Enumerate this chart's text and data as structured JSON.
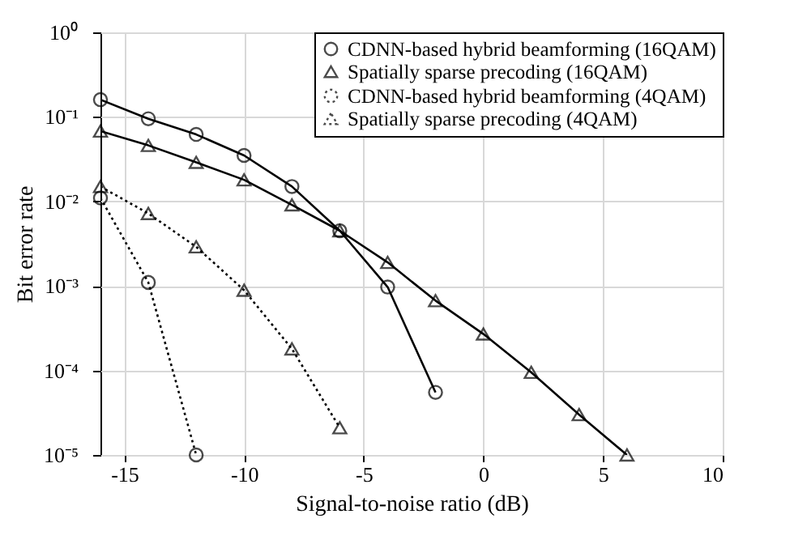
{
  "chart_data": {
    "type": "line",
    "xlabel": "Signal-to-noise ratio (dB)",
    "ylabel": "Bit error rate",
    "log": "y",
    "grid": true,
    "legend": "top right",
    "xlim": [
      -16,
      10
    ],
    "xticks": [
      -15,
      -10,
      -5,
      0,
      5,
      10
    ],
    "ylim": [
      1e-05,
      1
    ],
    "yticks": [
      {
        "value": 1e-05,
        "label": "10⁻⁵"
      },
      {
        "value": 0.0001,
        "label": "10⁻⁴"
      },
      {
        "value": 0.001,
        "label": "10⁻³"
      },
      {
        "value": 0.01,
        "label": "10⁻²"
      },
      {
        "value": 0.1,
        "label": "10⁻¹"
      },
      {
        "value": 1,
        "label": "10⁰"
      }
    ],
    "series": [
      {
        "name": "CDNN-based hybrid beamforming (16QAM)",
        "color": "#000000",
        "marker": "circle",
        "line_style": "solid",
        "x": [
          -16,
          -14,
          -12,
          -10,
          -8,
          -6,
          -4,
          -2
        ],
        "values": [
          0.16,
          0.095,
          0.062,
          0.035,
          0.015,
          0.0045,
          0.00097,
          5.5e-05
        ]
      },
      {
        "name": "Spatially sparse precoding (16QAM)",
        "color": "#000000",
        "marker": "triangle",
        "line_style": "solid",
        "x": [
          -16,
          -14,
          -12,
          -10,
          -8,
          -6,
          -4,
          -2,
          0,
          2,
          4,
          6
        ],
        "values": [
          0.068,
          0.046,
          0.029,
          0.018,
          0.0091,
          0.0045,
          0.0019,
          0.00067,
          0.00027,
          9.5e-05,
          3e-05,
          1e-05
        ]
      },
      {
        "name": "CDNN-based hybrid beamforming (4QAM)",
        "color": "#000000",
        "marker": "circle",
        "line_style": "dotted",
        "x": [
          -16,
          -14,
          -12
        ],
        "values": [
          0.011,
          0.0011,
          1e-05
        ]
      },
      {
        "name": "Spatially sparse precoding (4QAM)",
        "color": "#000000",
        "marker": "triangle",
        "line_style": "dotted",
        "x": [
          -16,
          -14,
          -12,
          -10,
          -8,
          -6
        ],
        "values": [
          0.015,
          0.0072,
          0.0029,
          0.00089,
          0.00018,
          2.1e-05
        ]
      }
    ]
  }
}
